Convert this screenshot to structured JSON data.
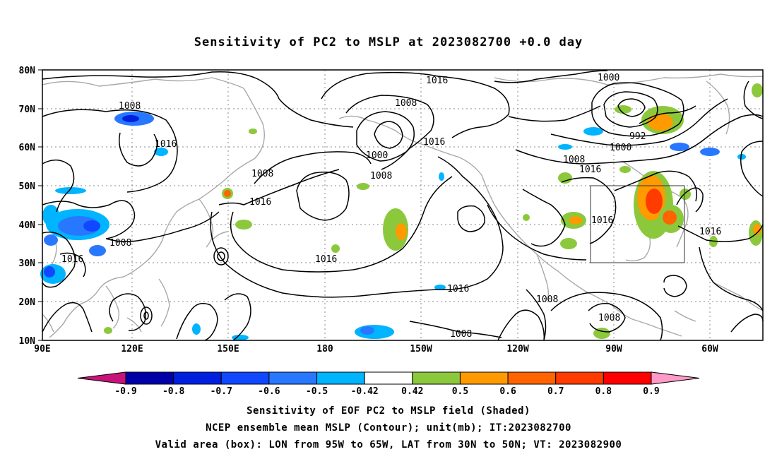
{
  "title": "Sensitivity of PC2 to MSLP at 2023082700 +0.0 day",
  "lat_labels": [
    "80N",
    "70N",
    "60N",
    "50N",
    "40N",
    "30N",
    "20N",
    "10N"
  ],
  "lon_labels": [
    "90E",
    "120E",
    "150E",
    "180",
    "150W",
    "120W",
    "90W",
    "60W"
  ],
  "contour_labels": [
    {
      "text": "1016"
    },
    {
      "text": "1008"
    },
    {
      "text": "1000"
    },
    {
      "text": "1008"
    },
    {
      "text": "1008"
    },
    {
      "text": "1016"
    },
    {
      "text": "1016"
    },
    {
      "text": "1008"
    },
    {
      "text": "1016"
    },
    {
      "text": "1008"
    },
    {
      "text": "1016"
    },
    {
      "text": "1000"
    },
    {
      "text": "992"
    },
    {
      "text": "1000"
    },
    {
      "text": "1008"
    },
    {
      "text": "1016"
    },
    {
      "text": "1016"
    },
    {
      "text": "1016"
    },
    {
      "text": "1016"
    },
    {
      "text": "1016"
    },
    {
      "text": "1008"
    },
    {
      "text": "1008"
    },
    {
      "text": "1008"
    }
  ],
  "colorbar": {
    "labels": [
      "-0.9",
      "-0.8",
      "-0.7",
      "-0.6",
      "-0.5",
      "-0.42",
      "0.42",
      "0.5",
      "0.6",
      "0.7",
      "0.8",
      "0.9"
    ],
    "colors": [
      "#0000a8",
      "#0020e0",
      "#1048ff",
      "#2878ff",
      "#00b4ff",
      "#ffffff",
      "#8cc83c",
      "#ff9a00",
      "#ff6400",
      "#ff3c00",
      "#ff0000"
    ],
    "low_end_color": "#c8147a",
    "high_end_color": "#ff9ac8"
  },
  "captions": [
    "Sensitivity of EOF PC2 to MSLP field (Shaded)",
    "NCEP ensemble mean MSLP (Contour); unit(mb); IT:2023082700",
    "Valid area (box): LON from 95W to 65W, LAT from 30N to 50N; VT: 2023082900"
  ]
}
